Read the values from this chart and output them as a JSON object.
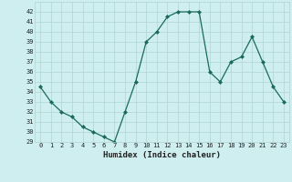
{
  "x": [
    0,
    1,
    2,
    3,
    4,
    5,
    6,
    7,
    8,
    9,
    10,
    11,
    12,
    13,
    14,
    15,
    16,
    17,
    18,
    19,
    20,
    21,
    22,
    23
  ],
  "y": [
    34.5,
    33.0,
    32.0,
    31.5,
    30.5,
    30.0,
    29.5,
    29.0,
    32.0,
    35.0,
    39.0,
    40.0,
    41.5,
    42.0,
    42.0,
    42.0,
    36.0,
    35.0,
    37.0,
    37.5,
    39.5,
    37.0,
    34.5,
    33.0
  ],
  "line_color": "#1a6b5a",
  "marker": "D",
  "marker_size": 2.0,
  "xlabel": "Humidex (Indice chaleur)",
  "xlim": [
    -0.5,
    23.5
  ],
  "ylim": [
    29,
    43
  ],
  "yticks": [
    29,
    30,
    31,
    32,
    33,
    34,
    35,
    36,
    37,
    38,
    39,
    40,
    41,
    42
  ],
  "xticks": [
    0,
    1,
    2,
    3,
    4,
    5,
    6,
    7,
    8,
    9,
    10,
    11,
    12,
    13,
    14,
    15,
    16,
    17,
    18,
    19,
    20,
    21,
    22,
    23
  ],
  "bg_color": "#ceeef0",
  "grid_color": "#b0d4d4",
  "font_color": "#222222",
  "tick_fontsize": 5.0,
  "xlabel_fontsize": 6.5,
  "linewidth": 0.9
}
